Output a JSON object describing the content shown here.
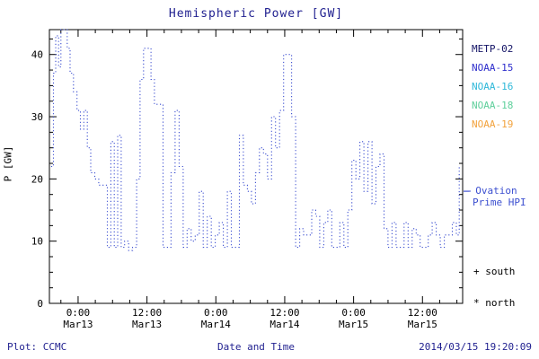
{
  "title": "Hemispheric Power [GW]",
  "colors": {
    "title": "#1f1f8f",
    "axis": "#000000",
    "line": "#3c4fd0",
    "metp02": "#141466",
    "noaa15": "#2e2ecc",
    "noaa16": "#2eb8d9",
    "noaa18": "#5ecf9b",
    "noaa19": "#f2a23c",
    "footer": "#1f1f8f"
  },
  "legend": {
    "satellites": [
      {
        "label": "METP-02",
        "color_key": "metp02"
      },
      {
        "label": "NOAA-15",
        "color_key": "noaa15"
      },
      {
        "label": "NOAA-16",
        "color_key": "noaa16"
      },
      {
        "label": "NOAA-18",
        "color_key": "noaa18"
      },
      {
        "label": "NOAA-19",
        "color_key": "noaa19"
      }
    ],
    "line_label_1": "– Ovation",
    "line_label_2": "Prime HPI",
    "south_label": "+ south",
    "north_label": "* north"
  },
  "footer": {
    "plot_credit": "Plot: CCMC",
    "xaxis_title": "Date and Time",
    "timestamp": "2014/03/15 19:20:09"
  },
  "chart_data": {
    "type": "line",
    "step": true,
    "linestyle": "dotted",
    "title": "Hemispheric Power [GW]",
    "xlabel": "Date and Time",
    "ylabel": "P [GW]",
    "ylim": [
      0,
      44
    ],
    "yticks": [
      0,
      10,
      20,
      30,
      40
    ],
    "y_minor_step": 2.5,
    "xlim": [
      -5,
      67
    ],
    "x_minor_step_hours": 3,
    "xticks": [
      {
        "hour": 0,
        "time": "0:00",
        "date": "Mar13"
      },
      {
        "hour": 12,
        "time": "12:00",
        "date": "Mar13"
      },
      {
        "hour": 24,
        "time": "0:00",
        "date": "Mar14"
      },
      {
        "hour": 36,
        "time": "12:00",
        "date": "Mar14"
      },
      {
        "hour": 48,
        "time": "0:00",
        "date": "Mar15"
      },
      {
        "hour": 60,
        "time": "12:00",
        "date": "Mar15"
      }
    ],
    "x_unit": "hours from 2014-03-13 00:00",
    "series_name": "Ovation Prime HPI",
    "points": [
      [
        -4.7,
        22
      ],
      [
        -4.3,
        37
      ],
      [
        -3.9,
        43
      ],
      [
        -3.4,
        38
      ],
      [
        -3.0,
        44
      ],
      [
        -2.4,
        44
      ],
      [
        -1.9,
        41
      ],
      [
        -1.4,
        37
      ],
      [
        -0.8,
        34
      ],
      [
        -0.2,
        31
      ],
      [
        0.4,
        28
      ],
      [
        1.0,
        31
      ],
      [
        1.6,
        25
      ],
      [
        2.2,
        21
      ],
      [
        2.9,
        20
      ],
      [
        3.6,
        19
      ],
      [
        4.4,
        19
      ],
      [
        5.1,
        9
      ],
      [
        5.7,
        26
      ],
      [
        6.3,
        9
      ],
      [
        6.9,
        27
      ],
      [
        7.5,
        9
      ],
      [
        8.1,
        10
      ],
      [
        8.8,
        8.5
      ],
      [
        9.5,
        9
      ],
      [
        10.2,
        20
      ],
      [
        10.8,
        36
      ],
      [
        11.4,
        41
      ],
      [
        12.1,
        41
      ],
      [
        12.7,
        36
      ],
      [
        13.3,
        32
      ],
      [
        14.0,
        32
      ],
      [
        14.8,
        9
      ],
      [
        15.5,
        9
      ],
      [
        16.2,
        21
      ],
      [
        16.9,
        31
      ],
      [
        17.6,
        22
      ],
      [
        18.3,
        9
      ],
      [
        19.0,
        12
      ],
      [
        19.7,
        10
      ],
      [
        20.4,
        11
      ],
      [
        21.1,
        18
      ],
      [
        21.8,
        9
      ],
      [
        22.5,
        14
      ],
      [
        23.2,
        9
      ],
      [
        23.9,
        11
      ],
      [
        24.6,
        13
      ],
      [
        25.3,
        9
      ],
      [
        26.0,
        18
      ],
      [
        26.7,
        9
      ],
      [
        27.4,
        9
      ],
      [
        28.1,
        27
      ],
      [
        28.8,
        19
      ],
      [
        29.5,
        18
      ],
      [
        30.2,
        16
      ],
      [
        30.9,
        21
      ],
      [
        31.6,
        25
      ],
      [
        32.3,
        24
      ],
      [
        33.0,
        20
      ],
      [
        33.7,
        30
      ],
      [
        34.4,
        25
      ],
      [
        35.1,
        31
      ],
      [
        35.8,
        40
      ],
      [
        36.5,
        40
      ],
      [
        37.2,
        30
      ],
      [
        37.9,
        9
      ],
      [
        38.6,
        12
      ],
      [
        39.3,
        11
      ],
      [
        40.0,
        11
      ],
      [
        40.7,
        15
      ],
      [
        41.4,
        14
      ],
      [
        42.1,
        9
      ],
      [
        42.8,
        13
      ],
      [
        43.5,
        15
      ],
      [
        44.2,
        9
      ],
      [
        44.9,
        9
      ],
      [
        45.6,
        13
      ],
      [
        46.3,
        9
      ],
      [
        47.0,
        15
      ],
      [
        47.7,
        23
      ],
      [
        48.4,
        20
      ],
      [
        49.1,
        26
      ],
      [
        49.8,
        18
      ],
      [
        50.5,
        26
      ],
      [
        51.2,
        16
      ],
      [
        51.9,
        22
      ],
      [
        52.6,
        24
      ],
      [
        53.3,
        12
      ],
      [
        54.0,
        9
      ],
      [
        54.7,
        13
      ],
      [
        55.4,
        9
      ],
      [
        56.1,
        9
      ],
      [
        56.8,
        13
      ],
      [
        57.5,
        9
      ],
      [
        58.2,
        12
      ],
      [
        58.9,
        11
      ],
      [
        59.6,
        9
      ],
      [
        60.3,
        9
      ],
      [
        61.0,
        11
      ],
      [
        61.7,
        13
      ],
      [
        62.4,
        11
      ],
      [
        63.1,
        9
      ],
      [
        63.8,
        11
      ],
      [
        64.5,
        11
      ],
      [
        65.2,
        13
      ],
      [
        65.9,
        11
      ],
      [
        66.4,
        22
      ]
    ]
  }
}
